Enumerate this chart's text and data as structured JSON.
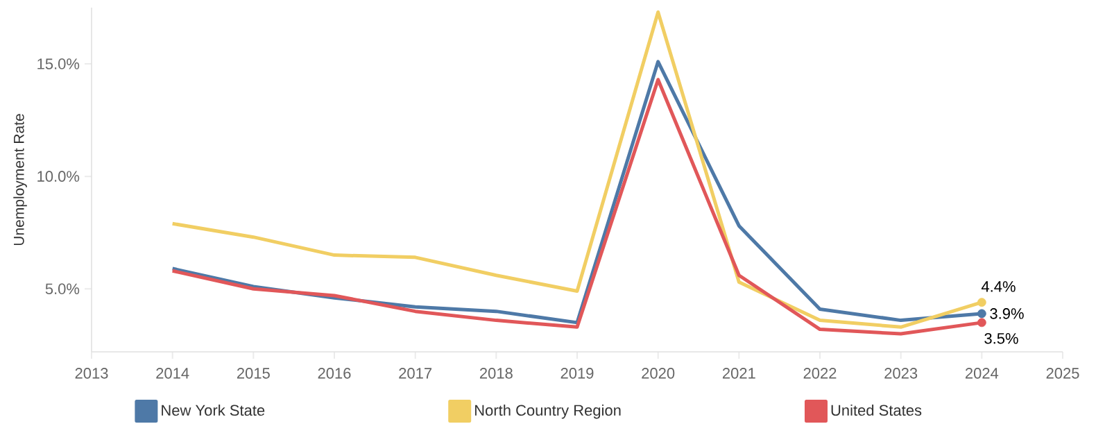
{
  "chart_data": {
    "type": "line",
    "ylabel": "Unemployment Rate",
    "x": [
      2014,
      2015,
      2016,
      2017,
      2018,
      2019,
      2020,
      2021,
      2022,
      2023,
      2024
    ],
    "series": [
      {
        "name": "New York State",
        "color": "#4e79a7",
        "values": [
          5.9,
          5.1,
          4.6,
          4.2,
          4.0,
          3.5,
          15.1,
          7.8,
          4.1,
          3.6,
          3.9
        ],
        "value_labels": [
          null,
          null,
          null,
          null,
          null,
          null,
          null,
          null,
          null,
          null,
          "3.9%"
        ]
      },
      {
        "name": "North Country Region",
        "color": "#f1ce63",
        "values": [
          7.9,
          7.3,
          6.5,
          6.4,
          5.6,
          4.9,
          17.3,
          5.3,
          3.6,
          3.3,
          4.4
        ],
        "value_labels": [
          null,
          null,
          null,
          null,
          null,
          null,
          null,
          null,
          null,
          null,
          "4.4%"
        ]
      },
      {
        "name": "United States",
        "color": "#e15759",
        "values": [
          5.8,
          5.0,
          4.7,
          4.0,
          3.6,
          3.3,
          14.3,
          5.6,
          3.2,
          3.0,
          3.5
        ],
        "value_labels": [
          null,
          null,
          null,
          null,
          null,
          null,
          null,
          null,
          null,
          null,
          "3.5%"
        ]
      }
    ],
    "xlim": [
      2013,
      2025
    ],
    "xticks": [
      2013,
      2014,
      2015,
      2016,
      2017,
      2018,
      2019,
      2020,
      2021,
      2022,
      2023,
      2024,
      2025
    ],
    "ylim": [
      2.2,
      17.5
    ],
    "yticks": [
      {
        "value": 5,
        "label": "5.0%"
      },
      {
        "value": 10,
        "label": "10.0%"
      },
      {
        "value": 15,
        "label": "15.0%"
      }
    ],
    "grid": false,
    "legend": "bottom"
  }
}
